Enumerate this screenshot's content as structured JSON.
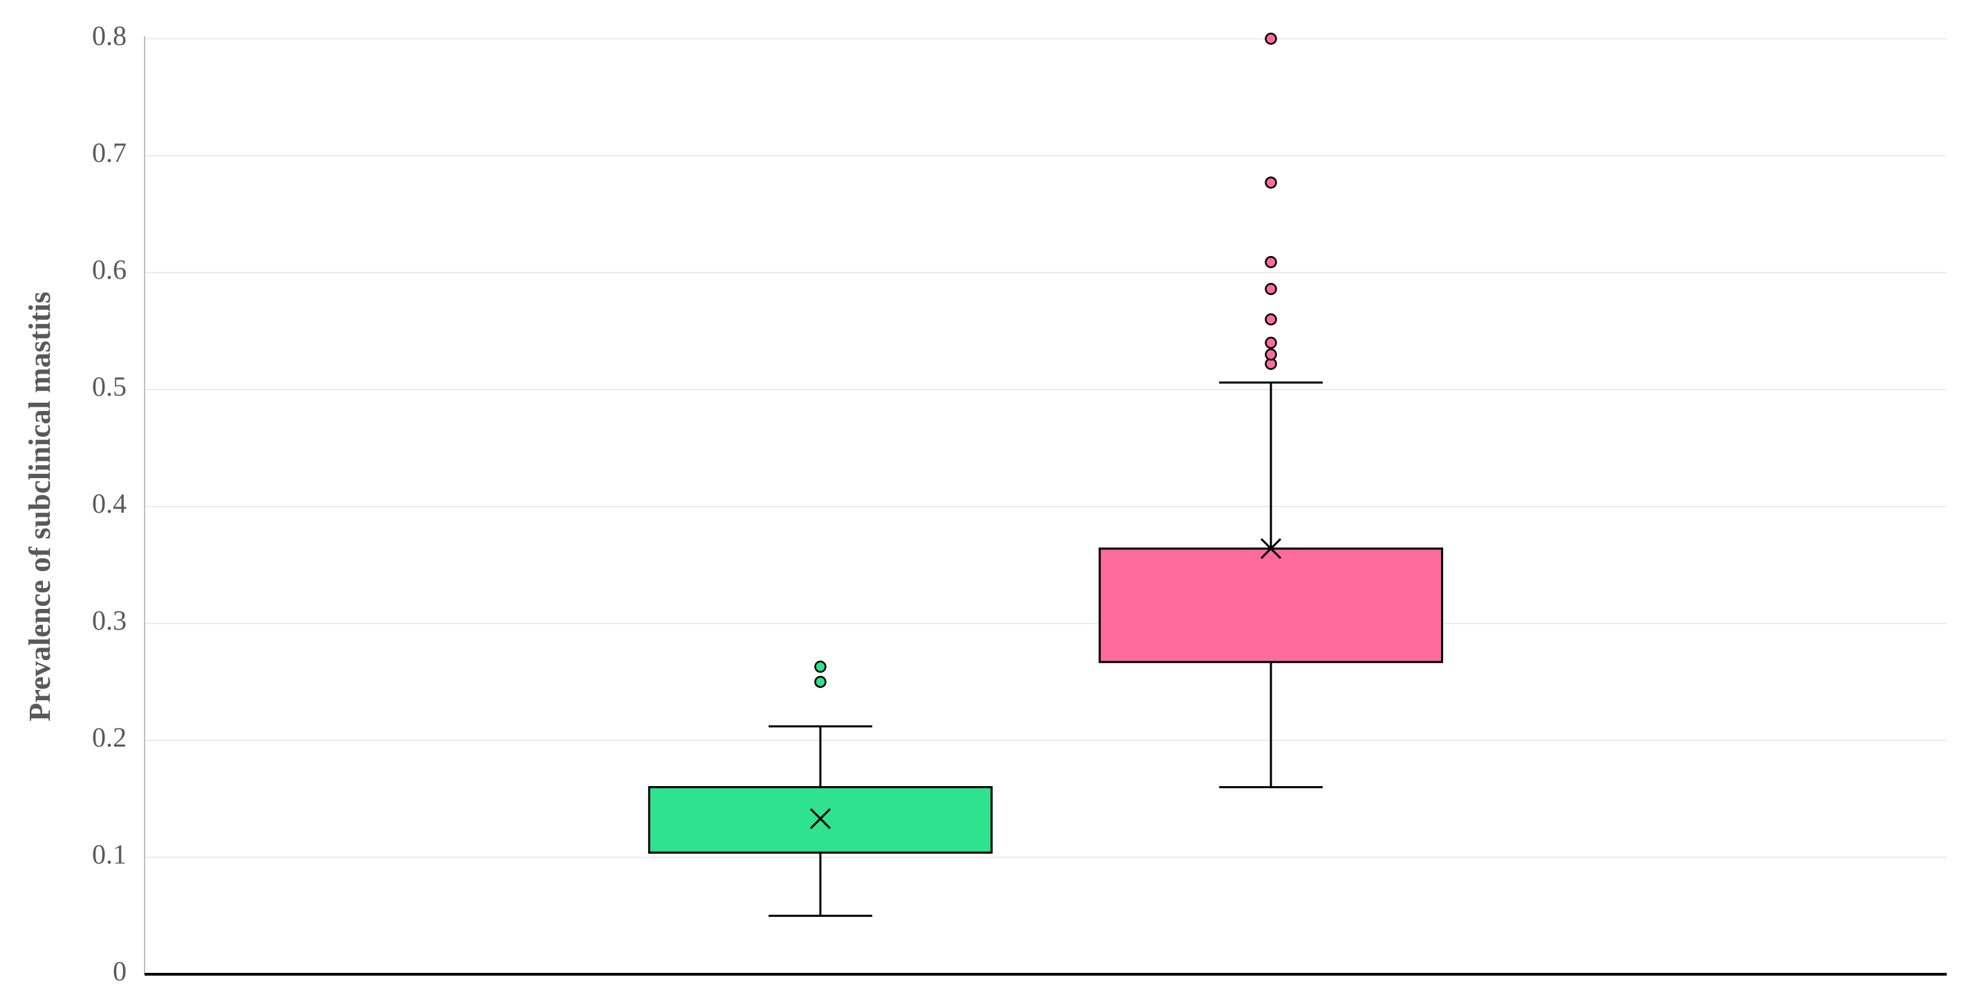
{
  "chart_data": {
    "type": "box",
    "y_label": "Prevalence of subclinical mastitis",
    "ylim": [
      0,
      0.8
    ],
    "yticks": [
      0,
      0.1,
      0.2,
      0.3,
      0.4,
      0.5,
      0.6,
      0.7,
      0.8
    ],
    "grid": true,
    "boxes": [
      {
        "color": "#2ee28e",
        "min": 0.05,
        "q1": 0.104,
        "q3": 0.16,
        "max": 0.212,
        "mean": 0.133,
        "outliers": [
          0.25,
          0.263
        ]
      },
      {
        "color": "#ff6b9c",
        "min": 0.16,
        "q1": 0.267,
        "q3": 0.364,
        "max": 0.506,
        "mean": 0.364,
        "outliers": [
          0.522,
          0.53,
          0.54,
          0.56,
          0.586,
          0.609,
          0.677,
          0.8
        ]
      }
    ]
  }
}
